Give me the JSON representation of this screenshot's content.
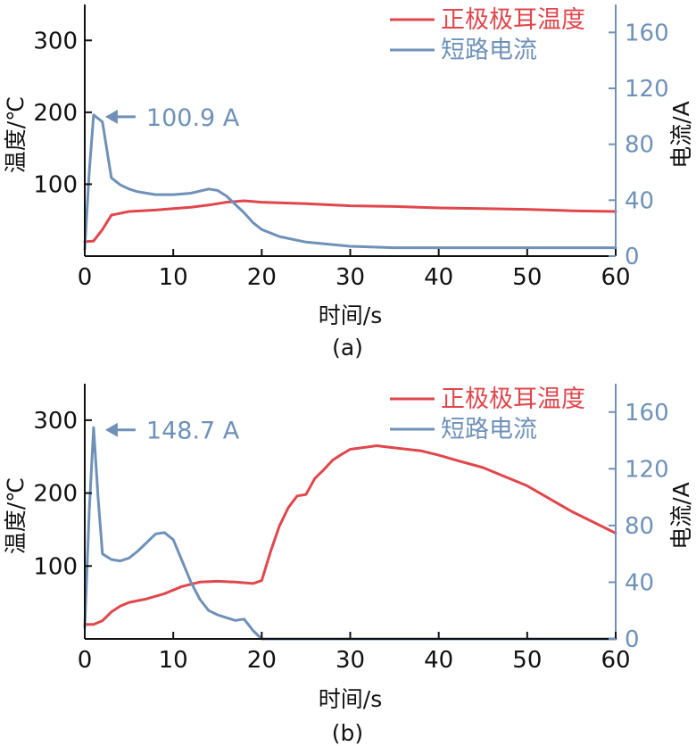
{
  "colors": {
    "temperature": "#e0474c",
    "current": "#6f91b8",
    "axis": "#111111"
  },
  "captions": [
    "(a)",
    "(b)"
  ],
  "chart_data": [
    {
      "type": "line",
      "caption": "(a)",
      "xlabel": "时间/s",
      "ylabel": "温度/℃",
      "y2label": "电流/A",
      "xlim": [
        0,
        60
      ],
      "ylim": [
        0,
        350
      ],
      "y2lim": [
        0,
        180
      ],
      "xticks": [
        0,
        10,
        20,
        30,
        40,
        50,
        60
      ],
      "yticks": [
        100,
        200,
        300
      ],
      "y2ticks": [
        0,
        40,
        80,
        120,
        160
      ],
      "legend": {
        "position": "top-right",
        "entries": [
          "正极极耳温度",
          "短路电流"
        ]
      },
      "annotation": {
        "text": "100.9 A",
        "x": 1.1,
        "y": 100.9,
        "axis": "right"
      },
      "series": [
        {
          "name": "正极极耳温度",
          "axis": "left",
          "x": [
            0,
            1,
            2,
            3,
            5,
            8,
            10,
            12,
            14,
            16,
            18,
            20,
            25,
            30,
            35,
            40,
            45,
            50,
            55,
            60
          ],
          "y": [
            20,
            21,
            37,
            57,
            62,
            64,
            66,
            68,
            71,
            75,
            77,
            75,
            73,
            70,
            69,
            67,
            66,
            65,
            63,
            62
          ]
        },
        {
          "name": "短路电流",
          "axis": "right",
          "x": [
            0,
            0.5,
            1,
            2,
            3,
            4,
            5,
            6,
            8,
            10,
            12,
            14,
            15,
            16,
            17,
            18,
            19,
            20,
            22,
            25,
            30,
            35,
            40,
            50,
            60
          ],
          "y": [
            5,
            60,
            101,
            96,
            56,
            51,
            48,
            46,
            44,
            44,
            45,
            48,
            47,
            43,
            37,
            31,
            24,
            19,
            14,
            10,
            7,
            6,
            6,
            6,
            6
          ]
        }
      ]
    },
    {
      "type": "line",
      "caption": "(b)",
      "xlabel": "时间/s",
      "ylabel": "温度/℃",
      "y2label": "电流/A",
      "xlim": [
        0,
        60
      ],
      "ylim": [
        0,
        350
      ],
      "y2lim": [
        0,
        180
      ],
      "xticks": [
        0,
        10,
        20,
        30,
        40,
        50,
        60
      ],
      "yticks": [
        100,
        200,
        300
      ],
      "y2ticks": [
        0,
        40,
        80,
        120,
        160
      ],
      "legend": {
        "position": "top-right",
        "entries": [
          "正极极耳温度",
          "短路电流"
        ]
      },
      "annotation": {
        "text": "148.7 A",
        "x": 1.1,
        "y": 148.7,
        "axis": "right"
      },
      "series": [
        {
          "name": "正极极耳温度",
          "axis": "left",
          "x": [
            0,
            1,
            2,
            3,
            4,
            5,
            7,
            9,
            11,
            13,
            15,
            17,
            19,
            20,
            21,
            22,
            23,
            24,
            25,
            26,
            27,
            28,
            29,
            30,
            33,
            35,
            38,
            40,
            42,
            45,
            48,
            50,
            55,
            60
          ],
          "y": [
            20,
            20,
            25,
            37,
            45,
            50,
            55,
            62,
            72,
            78,
            79,
            78,
            76,
            80,
            120,
            155,
            180,
            196,
            198,
            220,
            232,
            245,
            253,
            260,
            265,
            262,
            258,
            252,
            245,
            235,
            220,
            210,
            175,
            145
          ]
        },
        {
          "name": "短路电流",
          "axis": "right",
          "x": [
            0,
            0.5,
            1,
            1.5,
            2,
            3,
            4,
            5,
            6,
            7,
            8,
            9,
            10,
            11,
            12,
            13,
            14,
            15,
            16,
            17,
            18,
            18.5,
            19,
            20,
            25,
            30,
            40,
            50,
            60
          ],
          "y": [
            8,
            90,
            149,
            100,
            60,
            56,
            55,
            57,
            62,
            68,
            74,
            75,
            70,
            55,
            40,
            28,
            20,
            17,
            15,
            13,
            14,
            10,
            6,
            0,
            0,
            0,
            0,
            0,
            0
          ]
        }
      ]
    }
  ]
}
